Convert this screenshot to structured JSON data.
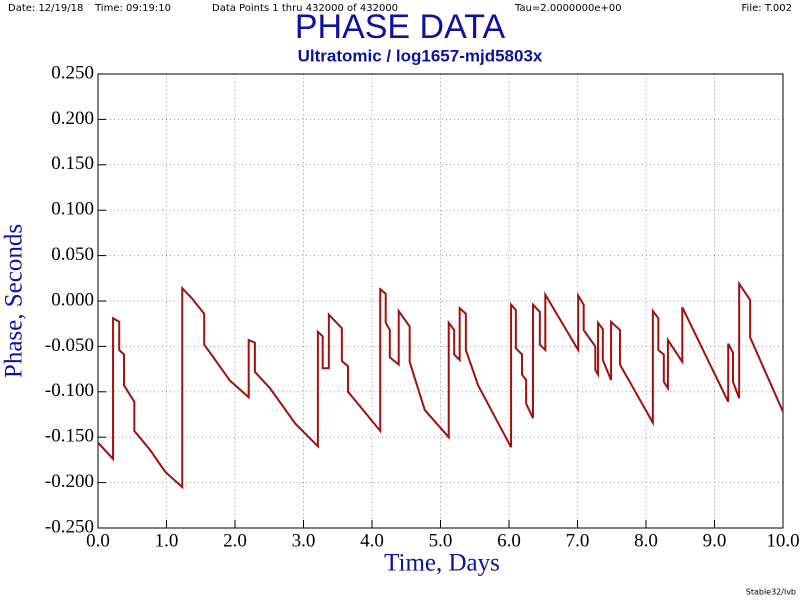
{
  "chart_data": {
    "type": "line",
    "header": {
      "date": "Date: 12/19/18",
      "time": "Time: 09:19:10",
      "points": "Data Points 1 thru 432000 of 432000",
      "tau": "Tau=2.0000000e+00",
      "file": "File: T.002"
    },
    "title": "PHASE DATA",
    "subtitle": "Ultratomic / log1657-mjd5803x",
    "x_label": "Time, Days",
    "y_label": "Phase, Seconds",
    "footer": "Stable32/lvb",
    "grid": true,
    "xlim": [
      0,
      10
    ],
    "ylim": [
      -0.25,
      0.25
    ],
    "xticks": [
      {
        "value": 0,
        "label": "0.0"
      },
      {
        "value": 1,
        "label": "1.0"
      },
      {
        "value": 2,
        "label": "2.0"
      },
      {
        "value": 3,
        "label": "3.0"
      },
      {
        "value": 4,
        "label": "4.0"
      },
      {
        "value": 5,
        "label": "5.0"
      },
      {
        "value": 6,
        "label": "6.0"
      },
      {
        "value": 7,
        "label": "7.0"
      },
      {
        "value": 8,
        "label": "8.0"
      },
      {
        "value": 9,
        "label": "9.0"
      },
      {
        "value": 10,
        "label": "10.0"
      }
    ],
    "yticks": [
      {
        "value": 0.25,
        "label": "0.250"
      },
      {
        "value": 0.2,
        "label": "0.200"
      },
      {
        "value": 0.15,
        "label": "0.150"
      },
      {
        "value": 0.1,
        "label": "0.100"
      },
      {
        "value": 0.05,
        "label": "0.050"
      },
      {
        "value": 0,
        "label": "0.000"
      },
      {
        "value": -0.05,
        "label": "-0.050"
      },
      {
        "value": -0.1,
        "label": "-0.100"
      },
      {
        "value": -0.15,
        "label": "-0.150"
      },
      {
        "value": -0.2,
        "label": "-0.200"
      },
      {
        "value": -0.25,
        "label": "-0.250"
      }
    ],
    "x": [
      0,
      0.22,
      0.22,
      0.31,
      0.31,
      0.38,
      0.38,
      0.53,
      0.53,
      0.76,
      0.98,
      1.23,
      1.23,
      1.37,
      1.55,
      1.55,
      1.93,
      2.2,
      2.2,
      2.29,
      2.29,
      2.51,
      2.88,
      3.21,
      3.21,
      3.28,
      3.28,
      3.37,
      3.37,
      3.56,
      3.56,
      3.65,
      3.65,
      4.12,
      4.12,
      4.2,
      4.2,
      4.26,
      4.26,
      4.39,
      4.39,
      4.55,
      4.55,
      4.77,
      5.12,
      5.12,
      5.2,
      5.2,
      5.28,
      5.28,
      5.37,
      5.37,
      5.55,
      6.03,
      6.03,
      6.1,
      6.1,
      6.19,
      6.19,
      6.25,
      6.25,
      6.35,
      6.35,
      6.45,
      6.45,
      6.53,
      6.53,
      7.01,
      7.01,
      7.09,
      7.09,
      7.26,
      7.26,
      7.3,
      7.3,
      7.37,
      7.37,
      7.49,
      7.49,
      7.62,
      7.62,
      8.1,
      8.1,
      8.18,
      8.18,
      8.26,
      8.26,
      8.32,
      8.32,
      8.53,
      8.53,
      9.2,
      9.2,
      9.27,
      9.27,
      9.36,
      9.36,
      9.52,
      9.52,
      10.0
    ],
    "series": [
      {
        "color": "#a01010",
        "values": [
          -0.156,
          -0.174,
          -0.019,
          -0.023,
          -0.054,
          -0.059,
          -0.093,
          -0.111,
          -0.143,
          -0.164,
          -0.188,
          -0.205,
          0.014,
          0.003,
          -0.014,
          -0.048,
          -0.088,
          -0.106,
          -0.043,
          -0.046,
          -0.078,
          -0.096,
          -0.135,
          -0.16,
          -0.034,
          -0.039,
          -0.074,
          -0.074,
          -0.015,
          -0.03,
          -0.066,
          -0.072,
          -0.1,
          -0.143,
          0.013,
          0.008,
          -0.024,
          -0.032,
          -0.062,
          -0.07,
          -0.011,
          -0.028,
          -0.067,
          -0.12,
          -0.15,
          -0.024,
          -0.032,
          -0.059,
          -0.065,
          -0.008,
          -0.014,
          -0.054,
          -0.093,
          -0.161,
          -0.004,
          -0.01,
          -0.052,
          -0.059,
          -0.081,
          -0.087,
          -0.113,
          -0.129,
          -0.004,
          -0.012,
          -0.048,
          -0.054,
          0.007,
          -0.054,
          0.006,
          -0.004,
          -0.032,
          -0.05,
          -0.076,
          -0.081,
          -0.024,
          -0.031,
          -0.065,
          -0.087,
          -0.023,
          -0.032,
          -0.07,
          -0.134,
          -0.011,
          -0.019,
          -0.054,
          -0.059,
          -0.089,
          -0.096,
          -0.043,
          -0.067,
          -0.007,
          -0.111,
          -0.047,
          -0.057,
          -0.089,
          -0.107,
          0.019,
          0.001,
          -0.04,
          -0.122
        ]
      }
    ]
  }
}
